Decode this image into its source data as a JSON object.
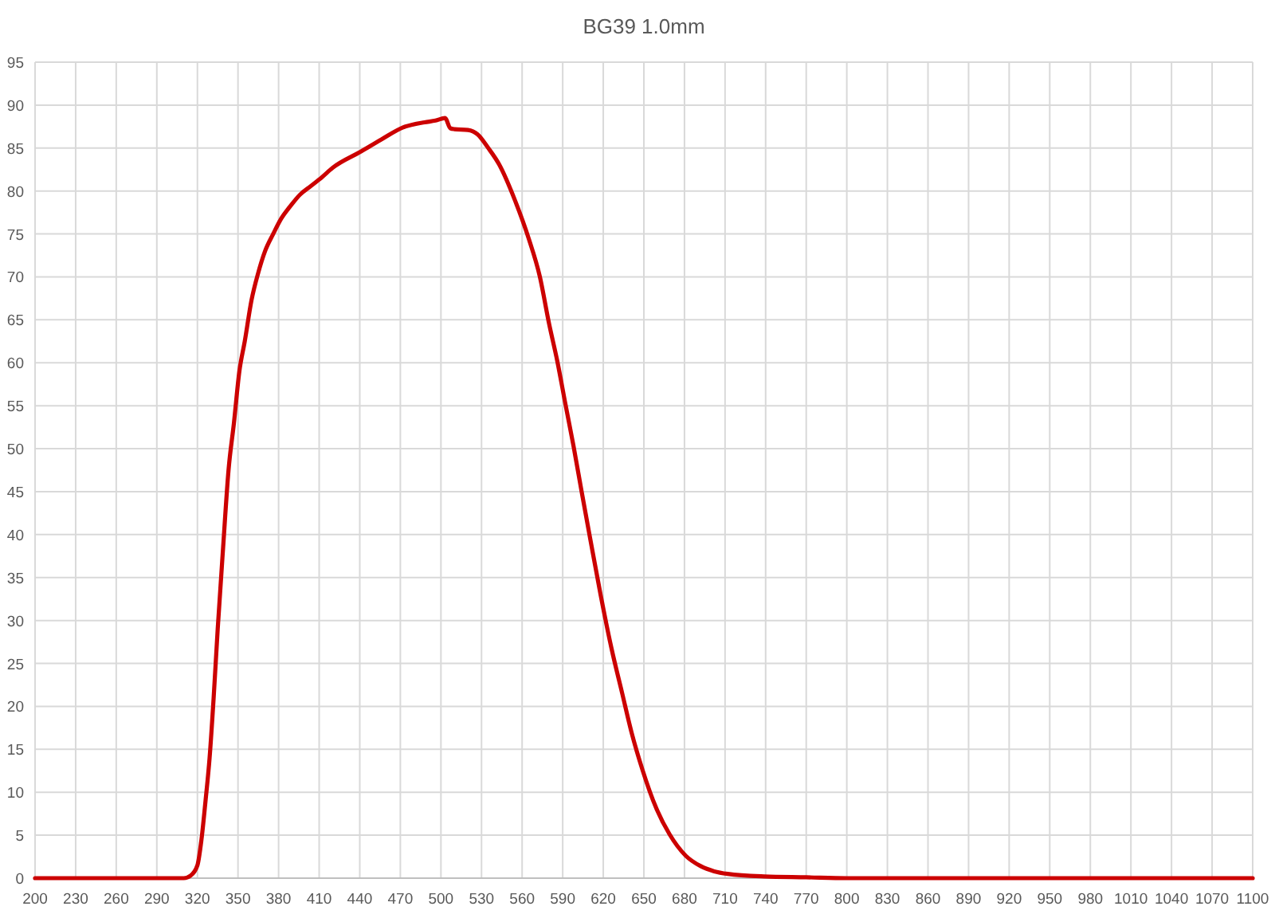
{
  "chart_data": {
    "type": "line",
    "title": "BG39 1.0mm",
    "x": [
      200,
      250,
      300,
      310,
      315,
      320,
      323,
      326,
      329,
      332,
      335,
      339,
      343,
      347,
      351,
      355,
      360,
      365,
      370,
      376,
      382,
      388,
      396,
      404,
      412,
      420,
      441,
      456,
      472,
      488,
      496,
      503,
      507,
      510,
      520,
      527,
      535,
      543,
      555,
      565,
      573,
      580,
      586,
      592,
      598,
      604,
      610,
      618,
      626,
      634,
      641,
      649,
      659,
      669,
      681,
      692,
      702,
      712,
      739,
      770,
      800,
      1100
    ],
    "series": [
      {
        "color": "#cc0000",
        "values": [
          0,
          0,
          0,
          0,
          0.3,
          1.5,
          4.5,
          9,
          14,
          21,
          29,
          38.5,
          47.5,
          53,
          59,
          62.5,
          67.3,
          70.5,
          73,
          75,
          76.8,
          78.1,
          79.6,
          80.6,
          81.6,
          82.7,
          84.6,
          86,
          87.4,
          88,
          88.2,
          88.5,
          87.3,
          87.2,
          87.1,
          86.6,
          85,
          83.1,
          78.8,
          74.4,
          70.1,
          64.5,
          60.2,
          55.2,
          50.3,
          45,
          39.8,
          33,
          26.8,
          21.5,
          16.9,
          12.6,
          8.2,
          5.1,
          2.6,
          1.4,
          0.8,
          0.5,
          0.2,
          0.1,
          0,
          0
        ]
      }
    ],
    "xlim": [
      200,
      1100
    ],
    "xticks": [
      200,
      230,
      260,
      290,
      320,
      350,
      380,
      410,
      440,
      470,
      500,
      530,
      560,
      590,
      620,
      650,
      680,
      710,
      740,
      770,
      800,
      830,
      860,
      890,
      920,
      950,
      980,
      1010,
      1040,
      1070,
      1100
    ],
    "ylim": [
      0,
      95
    ],
    "yticks": [
      0,
      5,
      10,
      15,
      20,
      25,
      30,
      35,
      40,
      45,
      50,
      55,
      60,
      65,
      70,
      75,
      80,
      85,
      90,
      95
    ],
    "grid": true
  }
}
